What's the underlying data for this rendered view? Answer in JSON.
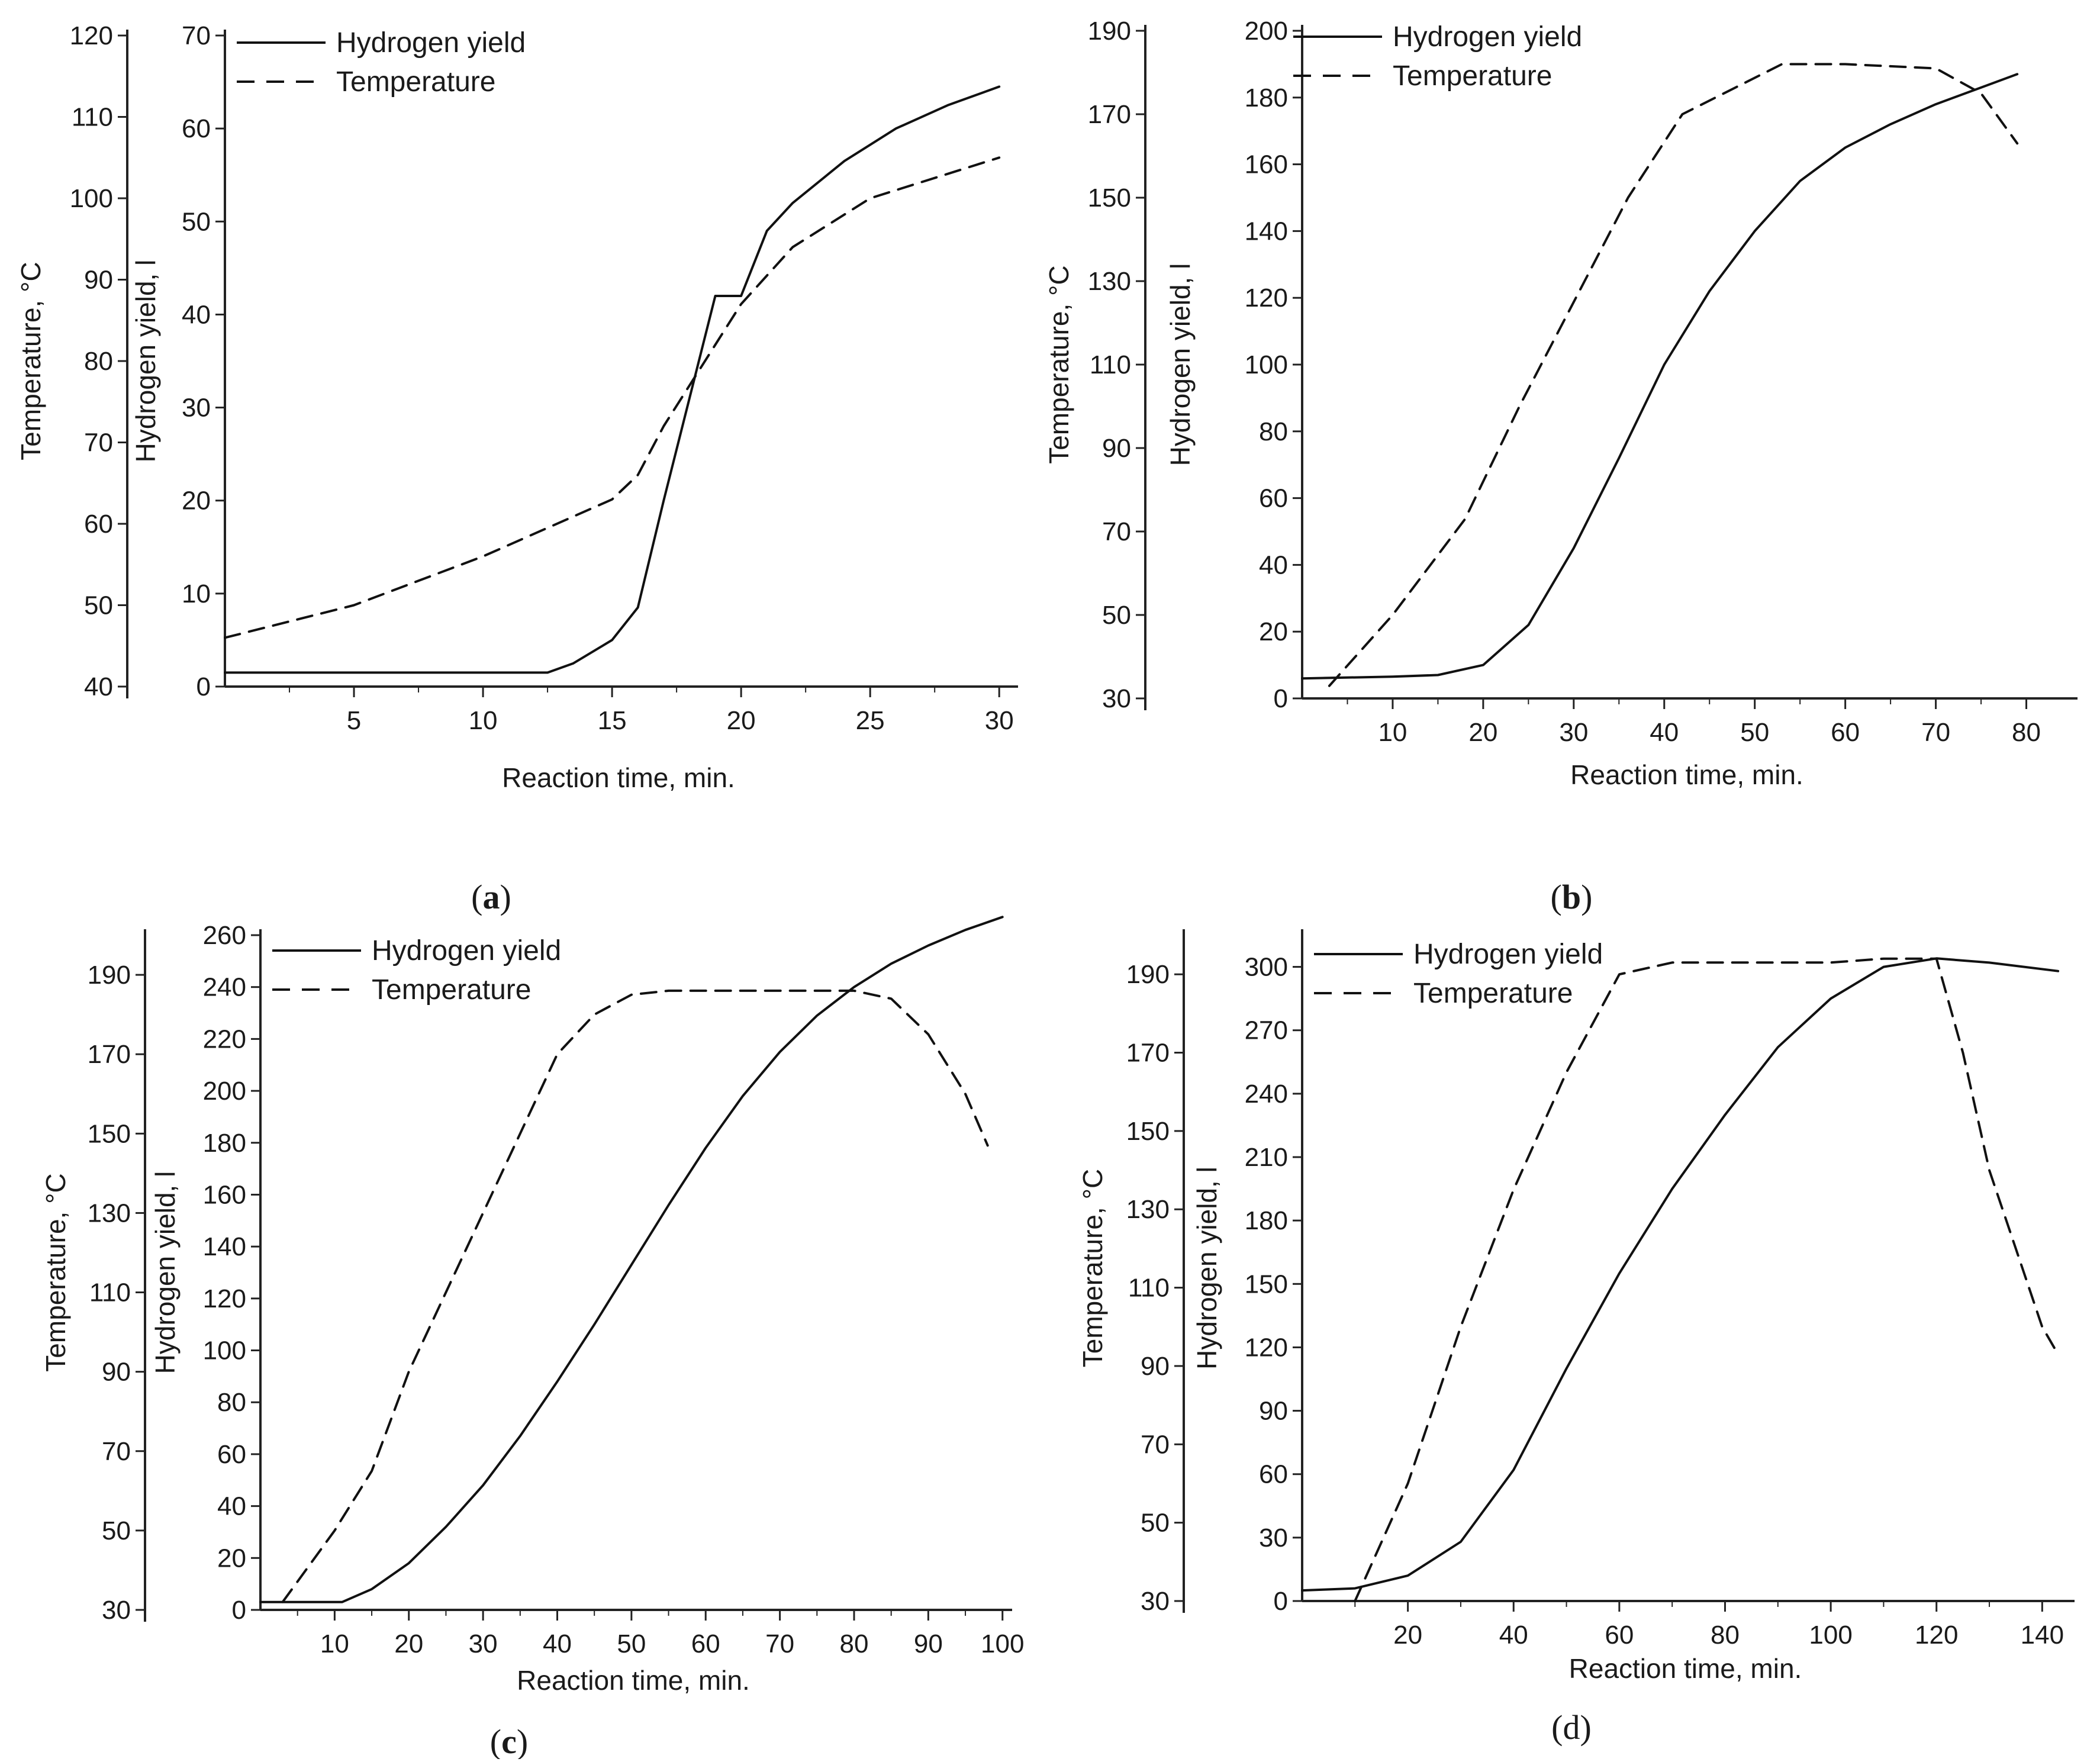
{
  "panel_labels": [
    {
      "open": "(",
      "letter": "a",
      "close": ")"
    },
    {
      "open": "(",
      "letter": "b",
      "close": ")"
    },
    {
      "open": "(",
      "letter": "c",
      "close": ")"
    },
    {
      "open": "",
      "letter": "(d)",
      "close": ""
    }
  ],
  "chart_data": [
    {
      "type": "line",
      "xlabel": "Reaction time, min.",
      "ylabel_left": "Hydrogen yield, l",
      "ylabel_right": "Temperature, °C",
      "xlim": [
        0,
        30.5
      ],
      "xticks": [
        5,
        10,
        15,
        20,
        25,
        30
      ],
      "ylim_yield": [
        0,
        70
      ],
      "yticks_yield": [
        0,
        10,
        20,
        30,
        40,
        50,
        60,
        70
      ],
      "ylim_temp": [
        40,
        120
      ],
      "yticks_temp": [
        40,
        50,
        60,
        70,
        80,
        90,
        100,
        110,
        120
      ],
      "legend": [
        "Hydrogen yield",
        "Temperature"
      ],
      "legend_position": "top-left",
      "grid": false,
      "series": [
        {
          "name": "Hydrogen yield",
          "axis": "yield",
          "style": "solid",
          "x": [
            0,
            5,
            10,
            12.5,
            13.5,
            15,
            16,
            17,
            18,
            19,
            20,
            21,
            22,
            24,
            26,
            28,
            30
          ],
          "y": [
            1.5,
            1.5,
            1.5,
            1.5,
            2.5,
            5,
            8.5,
            20,
            31,
            42,
            42,
            49,
            52,
            56.5,
            60,
            62.5,
            64.5
          ]
        },
        {
          "name": "Temperature",
          "axis": "temp",
          "style": "dashed",
          "x": [
            0,
            5,
            10,
            15,
            16,
            17,
            18,
            19,
            20,
            22,
            25,
            28,
            30
          ],
          "y": [
            46,
            50,
            56,
            63,
            66,
            72,
            77,
            82,
            87,
            94,
            100,
            103,
            105
          ]
        }
      ]
    },
    {
      "type": "line",
      "xlabel": "Reaction time, min.",
      "ylabel_left": "Hydrogen yield, l",
      "ylabel_right": "Temperature, °C",
      "xlim": [
        0,
        85
      ],
      "xticks": [
        10,
        20,
        30,
        40,
        50,
        60,
        70,
        80
      ],
      "ylim_yield": [
        0,
        200
      ],
      "yticks_yield": [
        0,
        20,
        40,
        60,
        80,
        100,
        120,
        140,
        160,
        180,
        200
      ],
      "ylim_temp": [
        30,
        190
      ],
      "yticks_temp": [
        30,
        50,
        70,
        90,
        110,
        130,
        150,
        170,
        190
      ],
      "legend": [
        "Hydrogen yield",
        "Temperature"
      ],
      "legend_position": "top-left",
      "grid": false,
      "series": [
        {
          "name": "Hydrogen yield",
          "axis": "yield",
          "style": "solid",
          "x": [
            0,
            10,
            15,
            20,
            25,
            30,
            35,
            40,
            45,
            50,
            55,
            60,
            65,
            70,
            75,
            79
          ],
          "y": [
            6,
            6.5,
            7,
            10,
            22,
            45,
            72,
            100,
            122,
            140,
            155,
            165,
            172,
            178,
            183,
            187
          ]
        },
        {
          "name": "Temperature",
          "axis": "temp",
          "style": "dashed",
          "x": [
            3,
            10,
            18,
            24,
            30,
            36,
            42,
            53,
            60,
            70,
            75,
            79
          ],
          "y": [
            33,
            50,
            73,
            100,
            125,
            150,
            170,
            182,
            182,
            181,
            175,
            163
          ]
        }
      ]
    },
    {
      "type": "line",
      "xlabel": "Reaction time, min.",
      "ylabel_left": "Hydrogen yield, l",
      "ylabel_right": "Temperature, °C",
      "xlim": [
        0,
        100.5
      ],
      "xticks": [
        10,
        20,
        30,
        40,
        50,
        60,
        70,
        80,
        90,
        100
      ],
      "ylim_yield": [
        0,
        260
      ],
      "yticks_yield": [
        0,
        20,
        40,
        60,
        80,
        100,
        120,
        140,
        160,
        180,
        200,
        220,
        240,
        260
      ],
      "ylim_temp": [
        30,
        200
      ],
      "yticks_temp": [
        30,
        50,
        70,
        90,
        110,
        130,
        150,
        170,
        190
      ],
      "legend": [
        "Hydrogen yield",
        "Temperature"
      ],
      "legend_position": "top-left",
      "grid": false,
      "series": [
        {
          "name": "Hydrogen yield",
          "axis": "yield",
          "style": "solid",
          "x": [
            0,
            5,
            11,
            15,
            20,
            25,
            30,
            35,
            40,
            45,
            50,
            55,
            60,
            65,
            70,
            75,
            80,
            85,
            90,
            95,
            100
          ],
          "y": [
            3,
            3,
            3,
            8,
            18,
            32,
            48,
            67,
            88,
            110,
            133,
            156,
            178,
            198,
            215,
            229,
            240,
            249,
            256,
            262,
            267
          ]
        },
        {
          "name": "Temperature",
          "axis": "temp",
          "style": "dashed",
          "x": [
            3,
            10,
            15,
            20,
            25,
            30,
            35,
            40,
            45,
            50,
            55,
            60,
            65,
            70,
            75,
            80,
            85,
            90,
            95,
            98
          ],
          "y": [
            32,
            50,
            65,
            90,
            110,
            130,
            150,
            170,
            180,
            185,
            186,
            186,
            186,
            186,
            186,
            186,
            184,
            175,
            160,
            147
          ]
        }
      ]
    },
    {
      "type": "line",
      "xlabel": "Reaction time, min.",
      "ylabel_left": "Hydrogen yield, l",
      "ylabel_right": "Temperature, °C",
      "xlim": [
        0,
        145
      ],
      "xticks": [
        20,
        40,
        60,
        80,
        100,
        120,
        140
      ],
      "ylim_yield": [
        0,
        315
      ],
      "yticks_yield": [
        0,
        30,
        60,
        90,
        120,
        150,
        180,
        210,
        240,
        270,
        300
      ],
      "ylim_temp": [
        30,
        200
      ],
      "yticks_temp": [
        30,
        50,
        70,
        90,
        110,
        130,
        150,
        170,
        190
      ],
      "legend": [
        "Hydrogen yield",
        "Temperature"
      ],
      "legend_position": "top-left",
      "grid": false,
      "series": [
        {
          "name": "Hydrogen yield",
          "axis": "yield",
          "style": "solid",
          "x": [
            0,
            10,
            20,
            30,
            40,
            50,
            60,
            70,
            80,
            90,
            100,
            110,
            120,
            130,
            143
          ],
          "y": [
            5,
            6,
            12,
            28,
            62,
            110,
            155,
            195,
            230,
            262,
            285,
            300,
            304,
            302,
            298
          ]
        },
        {
          "name": "Temperature",
          "axis": "temp",
          "style": "dashed",
          "x": [
            10,
            20,
            30,
            40,
            50,
            60,
            70,
            80,
            90,
            100,
            110,
            120,
            125,
            130,
            135,
            140,
            143
          ],
          "y": [
            30,
            60,
            100,
            135,
            165,
            190,
            193,
            193,
            193,
            193,
            194,
            194,
            170,
            140,
            120,
            100,
            93
          ]
        }
      ]
    }
  ]
}
